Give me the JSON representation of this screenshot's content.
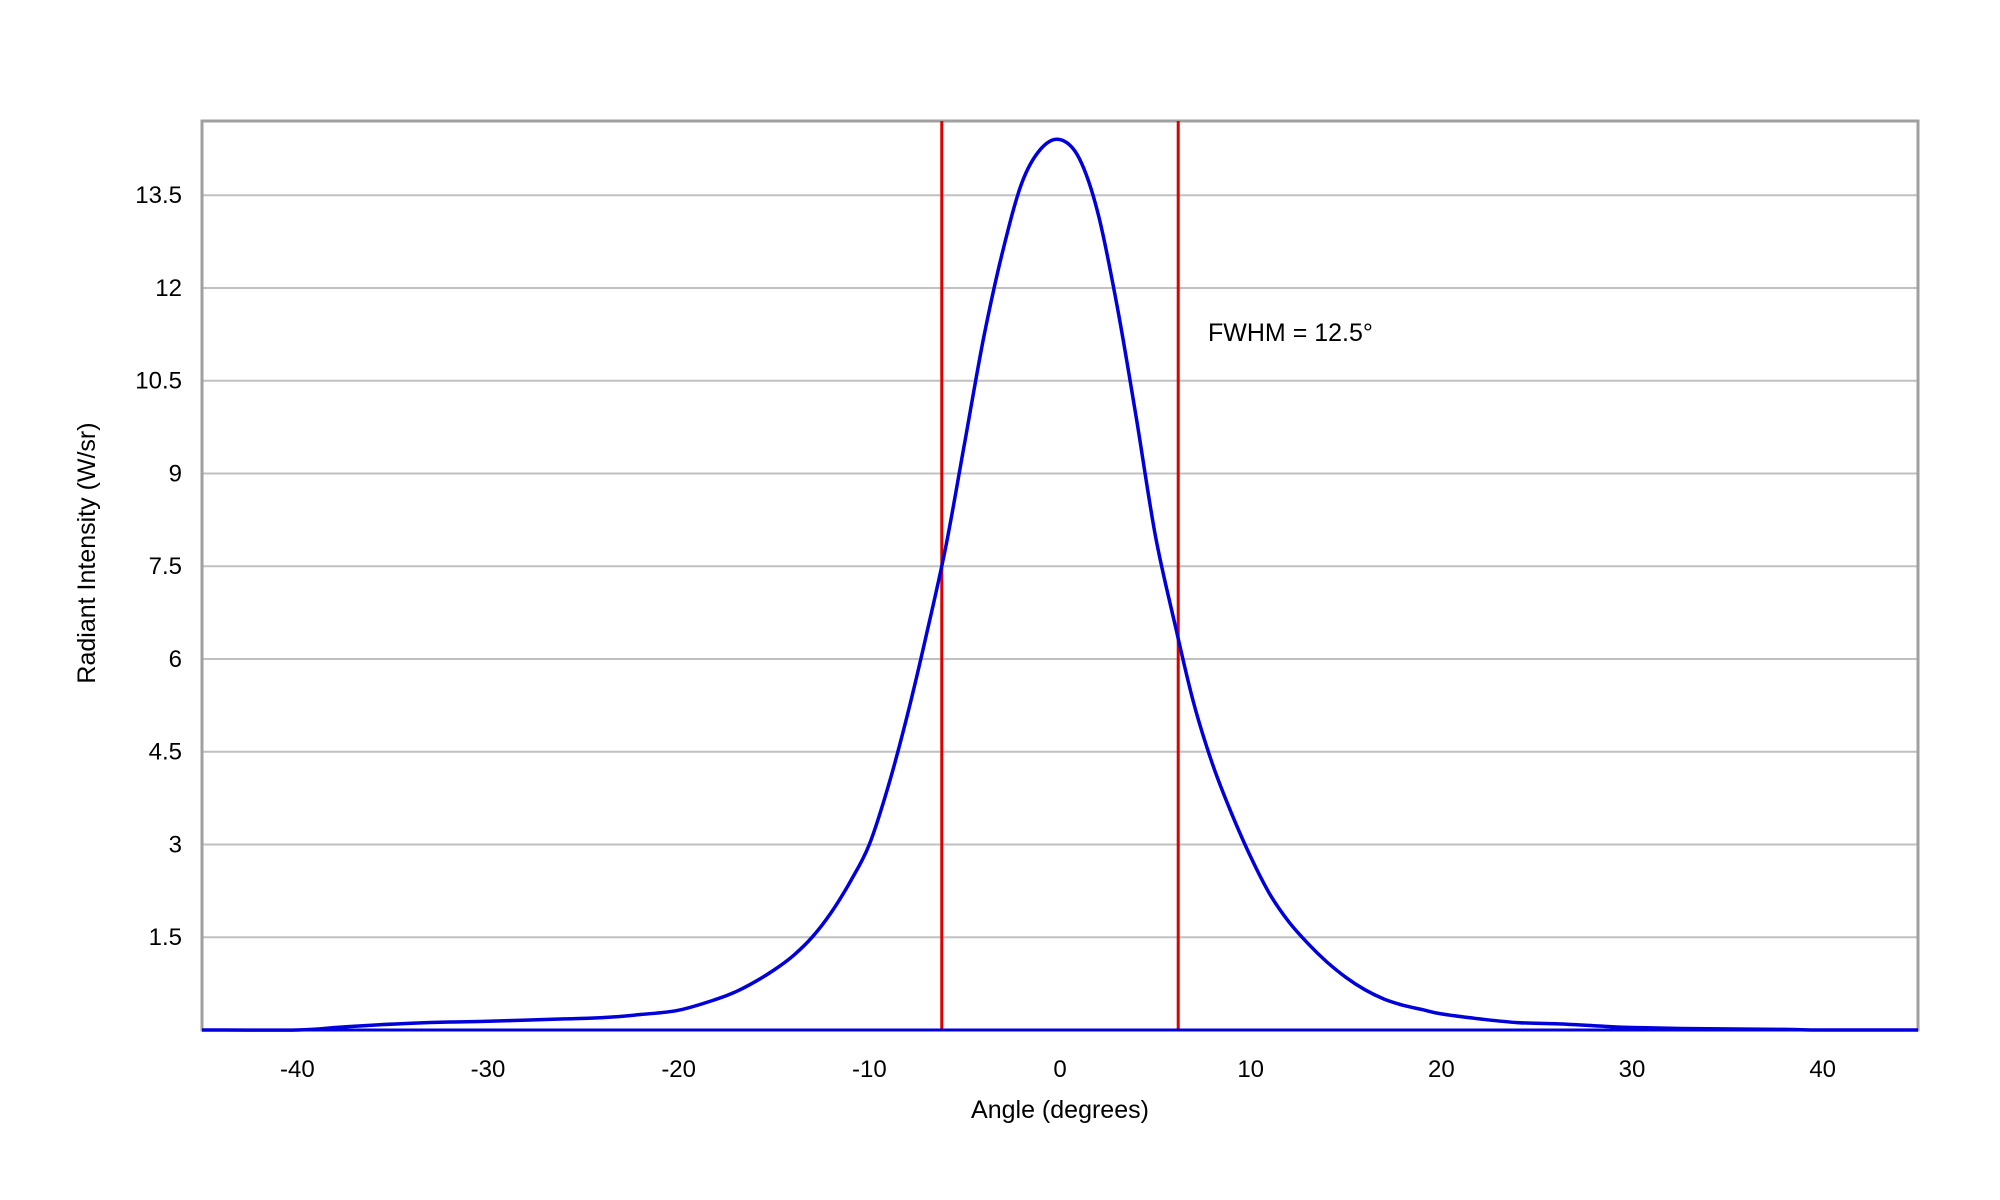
{
  "chart_data": {
    "type": "line",
    "title": "",
    "xlabel": "Angle (degrees)",
    "ylabel": "Radiant Intensity (W/sr)",
    "xlim": [
      -45,
      45
    ],
    "ylim": [
      0,
      14.7
    ],
    "xticks": [
      -40,
      -30,
      -20,
      -10,
      0,
      10,
      20,
      30,
      40
    ],
    "xtick_labels": [
      "-40",
      "-30",
      "-20",
      "-10",
      "0",
      "10",
      "20",
      "30",
      "40"
    ],
    "yticks": [
      1.5,
      3,
      4.5,
      6,
      7.5,
      9,
      10.5,
      12,
      13.5
    ],
    "ytick_labels": [
      "1.5",
      "3",
      "4.5",
      "6",
      "7.5",
      "9",
      "10.5",
      "12",
      "13.5"
    ],
    "grid": "horizontal",
    "legend": "none",
    "annotation": "FWHM = 12.5°",
    "vertical_lines": [
      -6.2,
      6.2
    ],
    "series": [
      {
        "color": "#0000dd",
        "x": [
          -45,
          -40,
          -38,
          -36,
          -34,
          -32,
          -30,
          -28,
          -26,
          -24,
          -22,
          -20,
          -18,
          -17,
          -16,
          -15,
          -14,
          -13,
          -12,
          -11,
          -10,
          -9,
          -8,
          -7,
          -6,
          -5,
          -4,
          -3,
          -2,
          -1,
          0,
          1,
          2,
          3,
          4,
          5,
          6,
          7,
          8,
          9,
          10,
          11,
          12,
          13,
          14,
          15,
          16,
          17,
          18,
          19,
          20,
          22,
          24,
          26,
          28,
          30,
          34,
          38,
          40,
          45
        ],
        "y": [
          0.0,
          0.0,
          0.04,
          0.08,
          0.11,
          0.13,
          0.14,
          0.16,
          0.18,
          0.2,
          0.25,
          0.32,
          0.5,
          0.62,
          0.78,
          0.97,
          1.2,
          1.5,
          1.9,
          2.4,
          3.0,
          3.95,
          5.1,
          6.4,
          7.8,
          9.5,
          11.2,
          12.6,
          13.7,
          14.25,
          14.4,
          14.1,
          13.2,
          11.7,
          9.9,
          8.0,
          6.6,
          5.3,
          4.3,
          3.5,
          2.8,
          2.2,
          1.75,
          1.4,
          1.1,
          0.85,
          0.65,
          0.5,
          0.4,
          0.33,
          0.26,
          0.18,
          0.12,
          0.1,
          0.07,
          0.04,
          0.02,
          0.01,
          0.0,
          0.0
        ]
      }
    ]
  },
  "colors": {
    "curve": "#0000dd",
    "markers": "#dd0000",
    "grid": "#c0c0c0",
    "frame": "#a0a0a0"
  }
}
